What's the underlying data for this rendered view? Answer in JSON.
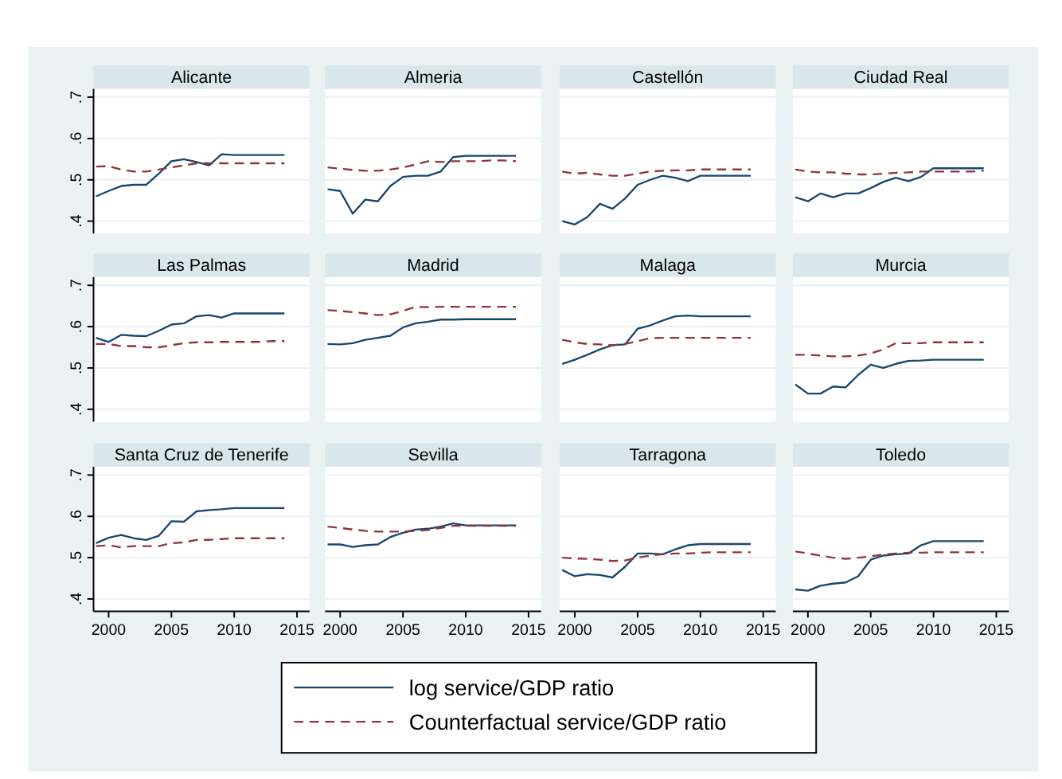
{
  "chart_data": [
    {
      "type": "line",
      "title": "Alicante",
      "x": [
        1999,
        2000,
        2001,
        2002,
        2003,
        2004,
        2005,
        2006,
        2007,
        2008,
        2009,
        2010,
        2011,
        2012,
        2013,
        2014
      ],
      "xlim": [
        1998.8,
        2016
      ],
      "ylim": [
        0.37,
        0.72
      ],
      "yticks": [
        {
          "value": 0.4,
          "label": ".4"
        },
        {
          "value": 0.5,
          "label": ".5"
        },
        {
          "value": 0.6,
          "label": ".6"
        },
        {
          "value": 0.7,
          "label": ".7"
        }
      ],
      "grid": "y",
      "tick_labels": "y",
      "legend": "bottom",
      "series": [
        {
          "name": "log service/GDP ratio",
          "color": "#1a476f",
          "line_style": "solid",
          "values": [
            0.46,
            0.473,
            0.485,
            0.488,
            0.488,
            0.515,
            0.545,
            0.55,
            0.543,
            0.535,
            0.562,
            0.56,
            0.56,
            0.56,
            0.56,
            0.56
          ]
        },
        {
          "name": "Counterfactual service/GDP ratio",
          "color": "#90353b",
          "line_style": "dashed",
          "values": [
            0.532,
            0.533,
            0.525,
            0.52,
            0.52,
            0.525,
            0.53,
            0.535,
            0.54,
            0.54,
            0.54,
            0.54,
            0.54,
            0.54,
            0.54,
            0.54
          ]
        }
      ]
    },
    {
      "type": "line",
      "title": "Almeria",
      "x": [
        1999,
        2000,
        2001,
        2002,
        2003,
        2004,
        2005,
        2006,
        2007,
        2008,
        2009,
        2010,
        2011,
        2012,
        2013,
        2014
      ],
      "xlim": [
        1998.8,
        2016
      ],
      "ylim": [
        0.37,
        0.72
      ],
      "yticks": [
        0.4,
        0.5,
        0.6,
        0.7
      ],
      "grid": "y",
      "tick_labels": false,
      "series": [
        {
          "color": "#1a476f",
          "line_style": "solid",
          "values": [
            0.477,
            0.473,
            0.418,
            0.452,
            0.448,
            0.485,
            0.507,
            0.51,
            0.51,
            0.52,
            0.555,
            0.558,
            0.558,
            0.558,
            0.558,
            0.558
          ]
        },
        {
          "color": "#90353b",
          "line_style": "dashed",
          "values": [
            0.53,
            0.527,
            0.524,
            0.522,
            0.522,
            0.525,
            0.53,
            0.537,
            0.545,
            0.543,
            0.545,
            0.545,
            0.545,
            0.547,
            0.547,
            0.545
          ]
        }
      ]
    },
    {
      "type": "line",
      "title": "Castellón",
      "x": [
        1999,
        2000,
        2001,
        2002,
        2003,
        2004,
        2005,
        2006,
        2007,
        2008,
        2009,
        2010,
        2011,
        2012,
        2013,
        2014
      ],
      "xlim": [
        1998.8,
        2016
      ],
      "ylim": [
        0.37,
        0.72
      ],
      "yticks": [
        0.4,
        0.5,
        0.6,
        0.7
      ],
      "grid": "y",
      "tick_labels": false,
      "series": [
        {
          "color": "#1a476f",
          "line_style": "solid",
          "values": [
            0.4,
            0.392,
            0.41,
            0.442,
            0.43,
            0.455,
            0.488,
            0.5,
            0.51,
            0.505,
            0.497,
            0.51,
            0.51,
            0.51,
            0.51,
            0.51
          ]
        },
        {
          "color": "#90353b",
          "line_style": "dashed",
          "values": [
            0.52,
            0.515,
            0.517,
            0.513,
            0.51,
            0.51,
            0.515,
            0.52,
            0.522,
            0.523,
            0.523,
            0.525,
            0.525,
            0.525,
            0.525,
            0.525
          ]
        }
      ]
    },
    {
      "type": "line",
      "title": "Ciudad Real",
      "x": [
        1999,
        2000,
        2001,
        2002,
        2003,
        2004,
        2005,
        2006,
        2007,
        2008,
        2009,
        2010,
        2011,
        2012,
        2013,
        2014
      ],
      "xlim": [
        1998.8,
        2016
      ],
      "ylim": [
        0.37,
        0.72
      ],
      "yticks": [
        0.4,
        0.5,
        0.6,
        0.7
      ],
      "grid": "y",
      "tick_labels": false,
      "series": [
        {
          "color": "#1a476f",
          "line_style": "solid",
          "values": [
            0.458,
            0.448,
            0.467,
            0.458,
            0.467,
            0.467,
            0.48,
            0.495,
            0.505,
            0.497,
            0.507,
            0.528,
            0.528,
            0.528,
            0.528,
            0.528
          ]
        },
        {
          "color": "#90353b",
          "line_style": "dashed",
          "values": [
            0.525,
            0.52,
            0.518,
            0.518,
            0.515,
            0.513,
            0.513,
            0.515,
            0.517,
            0.518,
            0.52,
            0.52,
            0.52,
            0.52,
            0.52,
            0.522
          ]
        }
      ]
    },
    {
      "type": "line",
      "title": "Las Palmas",
      "x": [
        1999,
        2000,
        2001,
        2002,
        2003,
        2004,
        2005,
        2006,
        2007,
        2008,
        2009,
        2010,
        2011,
        2012,
        2013,
        2014
      ],
      "xlim": [
        1998.8,
        2016
      ],
      "ylim": [
        0.37,
        0.72
      ],
      "yticks": [
        {
          "value": 0.4,
          "label": ".4"
        },
        {
          "value": 0.5,
          "label": ".5"
        },
        {
          "value": 0.6,
          "label": ".6"
        },
        {
          "value": 0.7,
          "label": ".7"
        }
      ],
      "grid": "y",
      "tick_labels": "y",
      "series": [
        {
          "color": "#1a476f",
          "line_style": "solid",
          "values": [
            0.573,
            0.563,
            0.58,
            0.578,
            0.577,
            0.59,
            0.605,
            0.608,
            0.625,
            0.628,
            0.622,
            0.632,
            0.632,
            0.632,
            0.632,
            0.632
          ]
        },
        {
          "color": "#90353b",
          "line_style": "dashed",
          "values": [
            0.558,
            0.558,
            0.553,
            0.553,
            0.55,
            0.55,
            0.555,
            0.56,
            0.562,
            0.562,
            0.563,
            0.563,
            0.563,
            0.563,
            0.565,
            0.565
          ]
        }
      ]
    },
    {
      "type": "line",
      "title": "Madrid",
      "x": [
        1999,
        2000,
        2001,
        2002,
        2003,
        2004,
        2005,
        2006,
        2007,
        2008,
        2009,
        2010,
        2011,
        2012,
        2013,
        2014
      ],
      "xlim": [
        1998.8,
        2016
      ],
      "ylim": [
        0.37,
        0.72
      ],
      "yticks": [
        0.4,
        0.5,
        0.6,
        0.7
      ],
      "grid": "y",
      "tick_labels": false,
      "series": [
        {
          "color": "#1a476f",
          "line_style": "solid",
          "values": [
            0.558,
            0.557,
            0.56,
            0.568,
            0.573,
            0.578,
            0.598,
            0.608,
            0.612,
            0.617,
            0.617,
            0.618,
            0.618,
            0.618,
            0.618,
            0.618
          ]
        },
        {
          "color": "#90353b",
          "line_style": "dashed",
          "values": [
            0.64,
            0.638,
            0.635,
            0.632,
            0.628,
            0.63,
            0.638,
            0.648,
            0.647,
            0.648,
            0.648,
            0.648,
            0.648,
            0.648,
            0.648,
            0.648
          ]
        }
      ]
    },
    {
      "type": "line",
      "title": "Malaga",
      "x": [
        1999,
        2000,
        2001,
        2002,
        2003,
        2004,
        2005,
        2006,
        2007,
        2008,
        2009,
        2010,
        2011,
        2012,
        2013,
        2014
      ],
      "xlim": [
        1998.8,
        2016
      ],
      "ylim": [
        0.37,
        0.72
      ],
      "yticks": [
        0.4,
        0.5,
        0.6,
        0.7
      ],
      "grid": "y",
      "tick_labels": false,
      "series": [
        {
          "color": "#1a476f",
          "line_style": "solid",
          "values": [
            0.51,
            0.52,
            0.532,
            0.545,
            0.555,
            0.557,
            0.595,
            0.603,
            0.615,
            0.625,
            0.627,
            0.625,
            0.625,
            0.625,
            0.625,
            0.625
          ]
        },
        {
          "color": "#90353b",
          "line_style": "dashed",
          "values": [
            0.568,
            0.562,
            0.558,
            0.557,
            0.555,
            0.558,
            0.565,
            0.572,
            0.573,
            0.573,
            0.573,
            0.573,
            0.573,
            0.573,
            0.573,
            0.573
          ]
        }
      ]
    },
    {
      "type": "line",
      "title": "Murcia",
      "x": [
        1999,
        2000,
        2001,
        2002,
        2003,
        2004,
        2005,
        2006,
        2007,
        2008,
        2009,
        2010,
        2011,
        2012,
        2013,
        2014
      ],
      "xlim": [
        1998.8,
        2016
      ],
      "ylim": [
        0.37,
        0.72
      ],
      "yticks": [
        0.4,
        0.5,
        0.6,
        0.7
      ],
      "grid": "y",
      "tick_labels": false,
      "series": [
        {
          "color": "#1a476f",
          "line_style": "solid",
          "values": [
            0.46,
            0.438,
            0.438,
            0.455,
            0.453,
            0.483,
            0.508,
            0.5,
            0.51,
            0.517,
            0.518,
            0.52,
            0.52,
            0.52,
            0.52,
            0.52
          ]
        },
        {
          "color": "#90353b",
          "line_style": "dashed",
          "values": [
            0.532,
            0.532,
            0.53,
            0.528,
            0.528,
            0.53,
            0.535,
            0.545,
            0.56,
            0.56,
            0.56,
            0.562,
            0.562,
            0.562,
            0.562,
            0.562
          ]
        }
      ]
    },
    {
      "type": "line",
      "title": "Santa Cruz de Tenerife",
      "x": [
        1999,
        2000,
        2001,
        2002,
        2003,
        2004,
        2005,
        2006,
        2007,
        2008,
        2009,
        2010,
        2011,
        2012,
        2013,
        2014
      ],
      "xlim": [
        1998.8,
        2016
      ],
      "xticks": [
        2000,
        2005,
        2010,
        2015
      ],
      "ylim": [
        0.37,
        0.72
      ],
      "yticks": [
        {
          "value": 0.4,
          "label": ".4"
        },
        {
          "value": 0.5,
          "label": ".5"
        },
        {
          "value": 0.6,
          "label": ".6"
        },
        {
          "value": 0.7,
          "label": ".7"
        }
      ],
      "grid": "y",
      "series": [
        {
          "color": "#1a476f",
          "line_style": "solid",
          "values": [
            0.535,
            0.548,
            0.555,
            0.547,
            0.543,
            0.553,
            0.588,
            0.587,
            0.612,
            0.615,
            0.617,
            0.62,
            0.62,
            0.62,
            0.62,
            0.62
          ]
        },
        {
          "color": "#90353b",
          "line_style": "dashed",
          "values": [
            0.528,
            0.53,
            0.525,
            0.528,
            0.528,
            0.528,
            0.535,
            0.537,
            0.543,
            0.543,
            0.545,
            0.547,
            0.547,
            0.547,
            0.547,
            0.547
          ]
        }
      ]
    },
    {
      "type": "line",
      "title": "Sevilla",
      "x": [
        1999,
        2000,
        2001,
        2002,
        2003,
        2004,
        2005,
        2006,
        2007,
        2008,
        2009,
        2010,
        2011,
        2012,
        2013,
        2014
      ],
      "xlim": [
        1998.8,
        2016
      ],
      "xticks": [
        2000,
        2005,
        2010,
        2015
      ],
      "ylim": [
        0.37,
        0.72
      ],
      "yticks": [
        0.4,
        0.5,
        0.6,
        0.7
      ],
      "grid": "y",
      "tick_labels": "x",
      "series": [
        {
          "color": "#1a476f",
          "line_style": "solid",
          "values": [
            0.532,
            0.532,
            0.526,
            0.53,
            0.532,
            0.55,
            0.56,
            0.568,
            0.57,
            0.575,
            0.583,
            0.578,
            0.578,
            0.578,
            0.578,
            0.578
          ]
        },
        {
          "color": "#90353b",
          "line_style": "dashed",
          "values": [
            0.575,
            0.572,
            0.568,
            0.565,
            0.563,
            0.563,
            0.563,
            0.565,
            0.567,
            0.572,
            0.577,
            0.577,
            0.577,
            0.577,
            0.577,
            0.577
          ]
        }
      ]
    },
    {
      "type": "line",
      "title": "Tarragona",
      "x": [
        1999,
        2000,
        2001,
        2002,
        2003,
        2004,
        2005,
        2006,
        2007,
        2008,
        2009,
        2010,
        2011,
        2012,
        2013,
        2014
      ],
      "xlim": [
        1998.8,
        2016
      ],
      "xticks": [
        2000,
        2005,
        2010,
        2015
      ],
      "ylim": [
        0.37,
        0.72
      ],
      "yticks": [
        0.4,
        0.5,
        0.6,
        0.7
      ],
      "grid": "y",
      "tick_labels": "x",
      "series": [
        {
          "color": "#1a476f",
          "line_style": "solid",
          "values": [
            0.47,
            0.455,
            0.46,
            0.458,
            0.452,
            0.478,
            0.51,
            0.51,
            0.508,
            0.52,
            0.53,
            0.533,
            0.533,
            0.533,
            0.533,
            0.533
          ]
        },
        {
          "color": "#90353b",
          "line_style": "dashed",
          "values": [
            0.5,
            0.498,
            0.497,
            0.495,
            0.492,
            0.493,
            0.5,
            0.505,
            0.508,
            0.51,
            0.51,
            0.512,
            0.513,
            0.513,
            0.513,
            0.513
          ]
        }
      ]
    },
    {
      "type": "line",
      "title": "Toledo",
      "x": [
        1999,
        2000,
        2001,
        2002,
        2003,
        2004,
        2005,
        2006,
        2007,
        2008,
        2009,
        2010,
        2011,
        2012,
        2013,
        2014
      ],
      "xlim": [
        1998.8,
        2016
      ],
      "xticks": [
        2000,
        2005,
        2010,
        2015
      ],
      "ylim": [
        0.37,
        0.72
      ],
      "yticks": [
        0.4,
        0.5,
        0.6,
        0.7
      ],
      "grid": "y",
      "tick_labels": "x",
      "series": [
        {
          "color": "#1a476f",
          "line_style": "solid",
          "values": [
            0.423,
            0.42,
            0.432,
            0.437,
            0.44,
            0.455,
            0.495,
            0.505,
            0.508,
            0.51,
            0.53,
            0.54,
            0.54,
            0.54,
            0.54,
            0.54
          ]
        },
        {
          "color": "#90353b",
          "line_style": "dashed",
          "values": [
            0.515,
            0.51,
            0.505,
            0.5,
            0.497,
            0.5,
            0.503,
            0.508,
            0.51,
            0.512,
            0.512,
            0.513,
            0.513,
            0.513,
            0.513,
            0.513
          ]
        }
      ]
    }
  ]
}
